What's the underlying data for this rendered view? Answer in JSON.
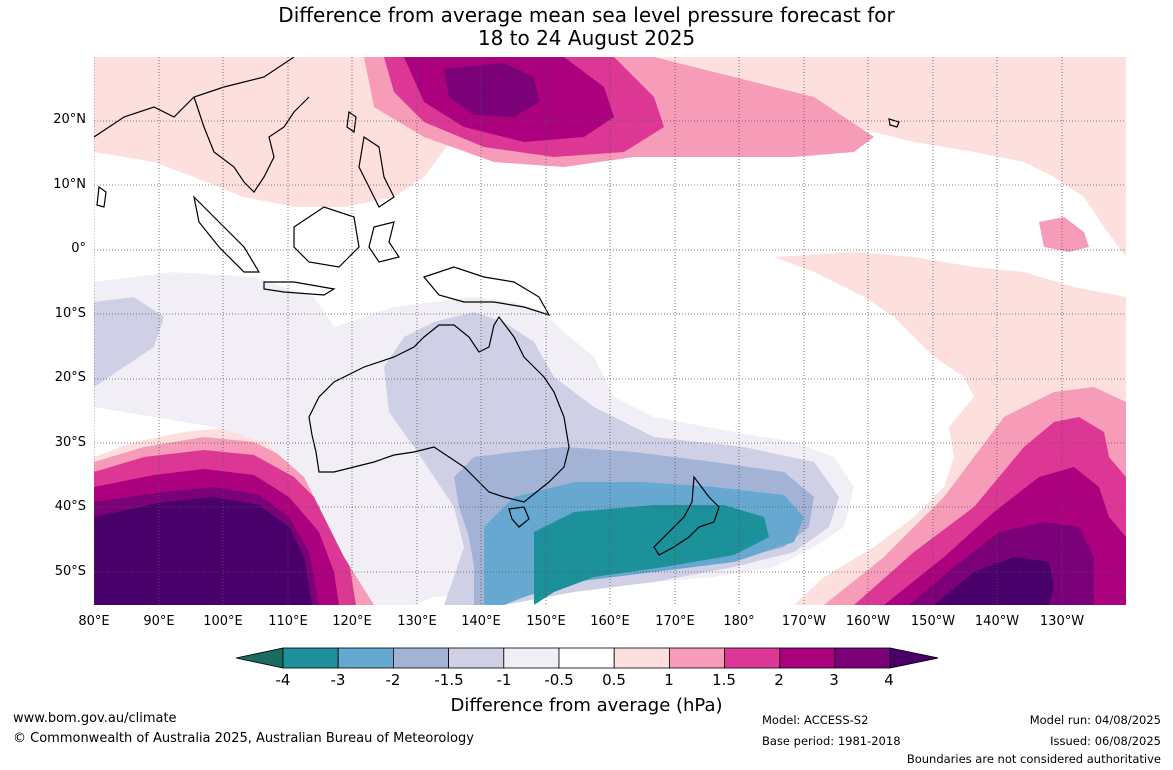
{
  "title_line1": "Difference from average mean sea level pressure forecast for",
  "title_line2": "18 to 24 August 2025",
  "lat_labels": [
    "20°N",
    "10°N",
    "0°",
    "10°S",
    "20°S",
    "30°S",
    "40°S",
    "50°S"
  ],
  "lon_labels": [
    "80°E",
    "90°E",
    "100°E",
    "110°E",
    "120°E",
    "130°E",
    "140°E",
    "150°E",
    "160°E",
    "170°E",
    "180°",
    "170°W",
    "160°W",
    "150°W",
    "140°W",
    "130°W"
  ],
  "colorbar": {
    "label": "Difference from average (hPa)",
    "ticks": [
      "-4",
      "-3",
      "-2",
      "-1.5",
      "-1",
      "-0.5",
      "0.5",
      "1",
      "1.5",
      "2",
      "3",
      "4"
    ],
    "colors": [
      "#1a6b60",
      "#1c9199",
      "#66a8d0",
      "#a3b3d6",
      "#cfd0e6",
      "#f1eef6",
      "#ffffff",
      "#fde0de",
      "#f69bb8",
      "#dc3795",
      "#ac017e",
      "#7a0177",
      "#49006a"
    ]
  },
  "footer": {
    "website": "www.bom.gov.au/climate",
    "copyright": "© Commonwealth of Australia 2025, Australian Bureau of Meteorology",
    "model": "Model: ACCESS-S2",
    "base_period": "Base period: 1981-2018",
    "model_run": "Model run: 04/08/2025",
    "issued": "Issued: 06/08/2025",
    "disclaimer": "Boundaries are not considered authoritative"
  }
}
